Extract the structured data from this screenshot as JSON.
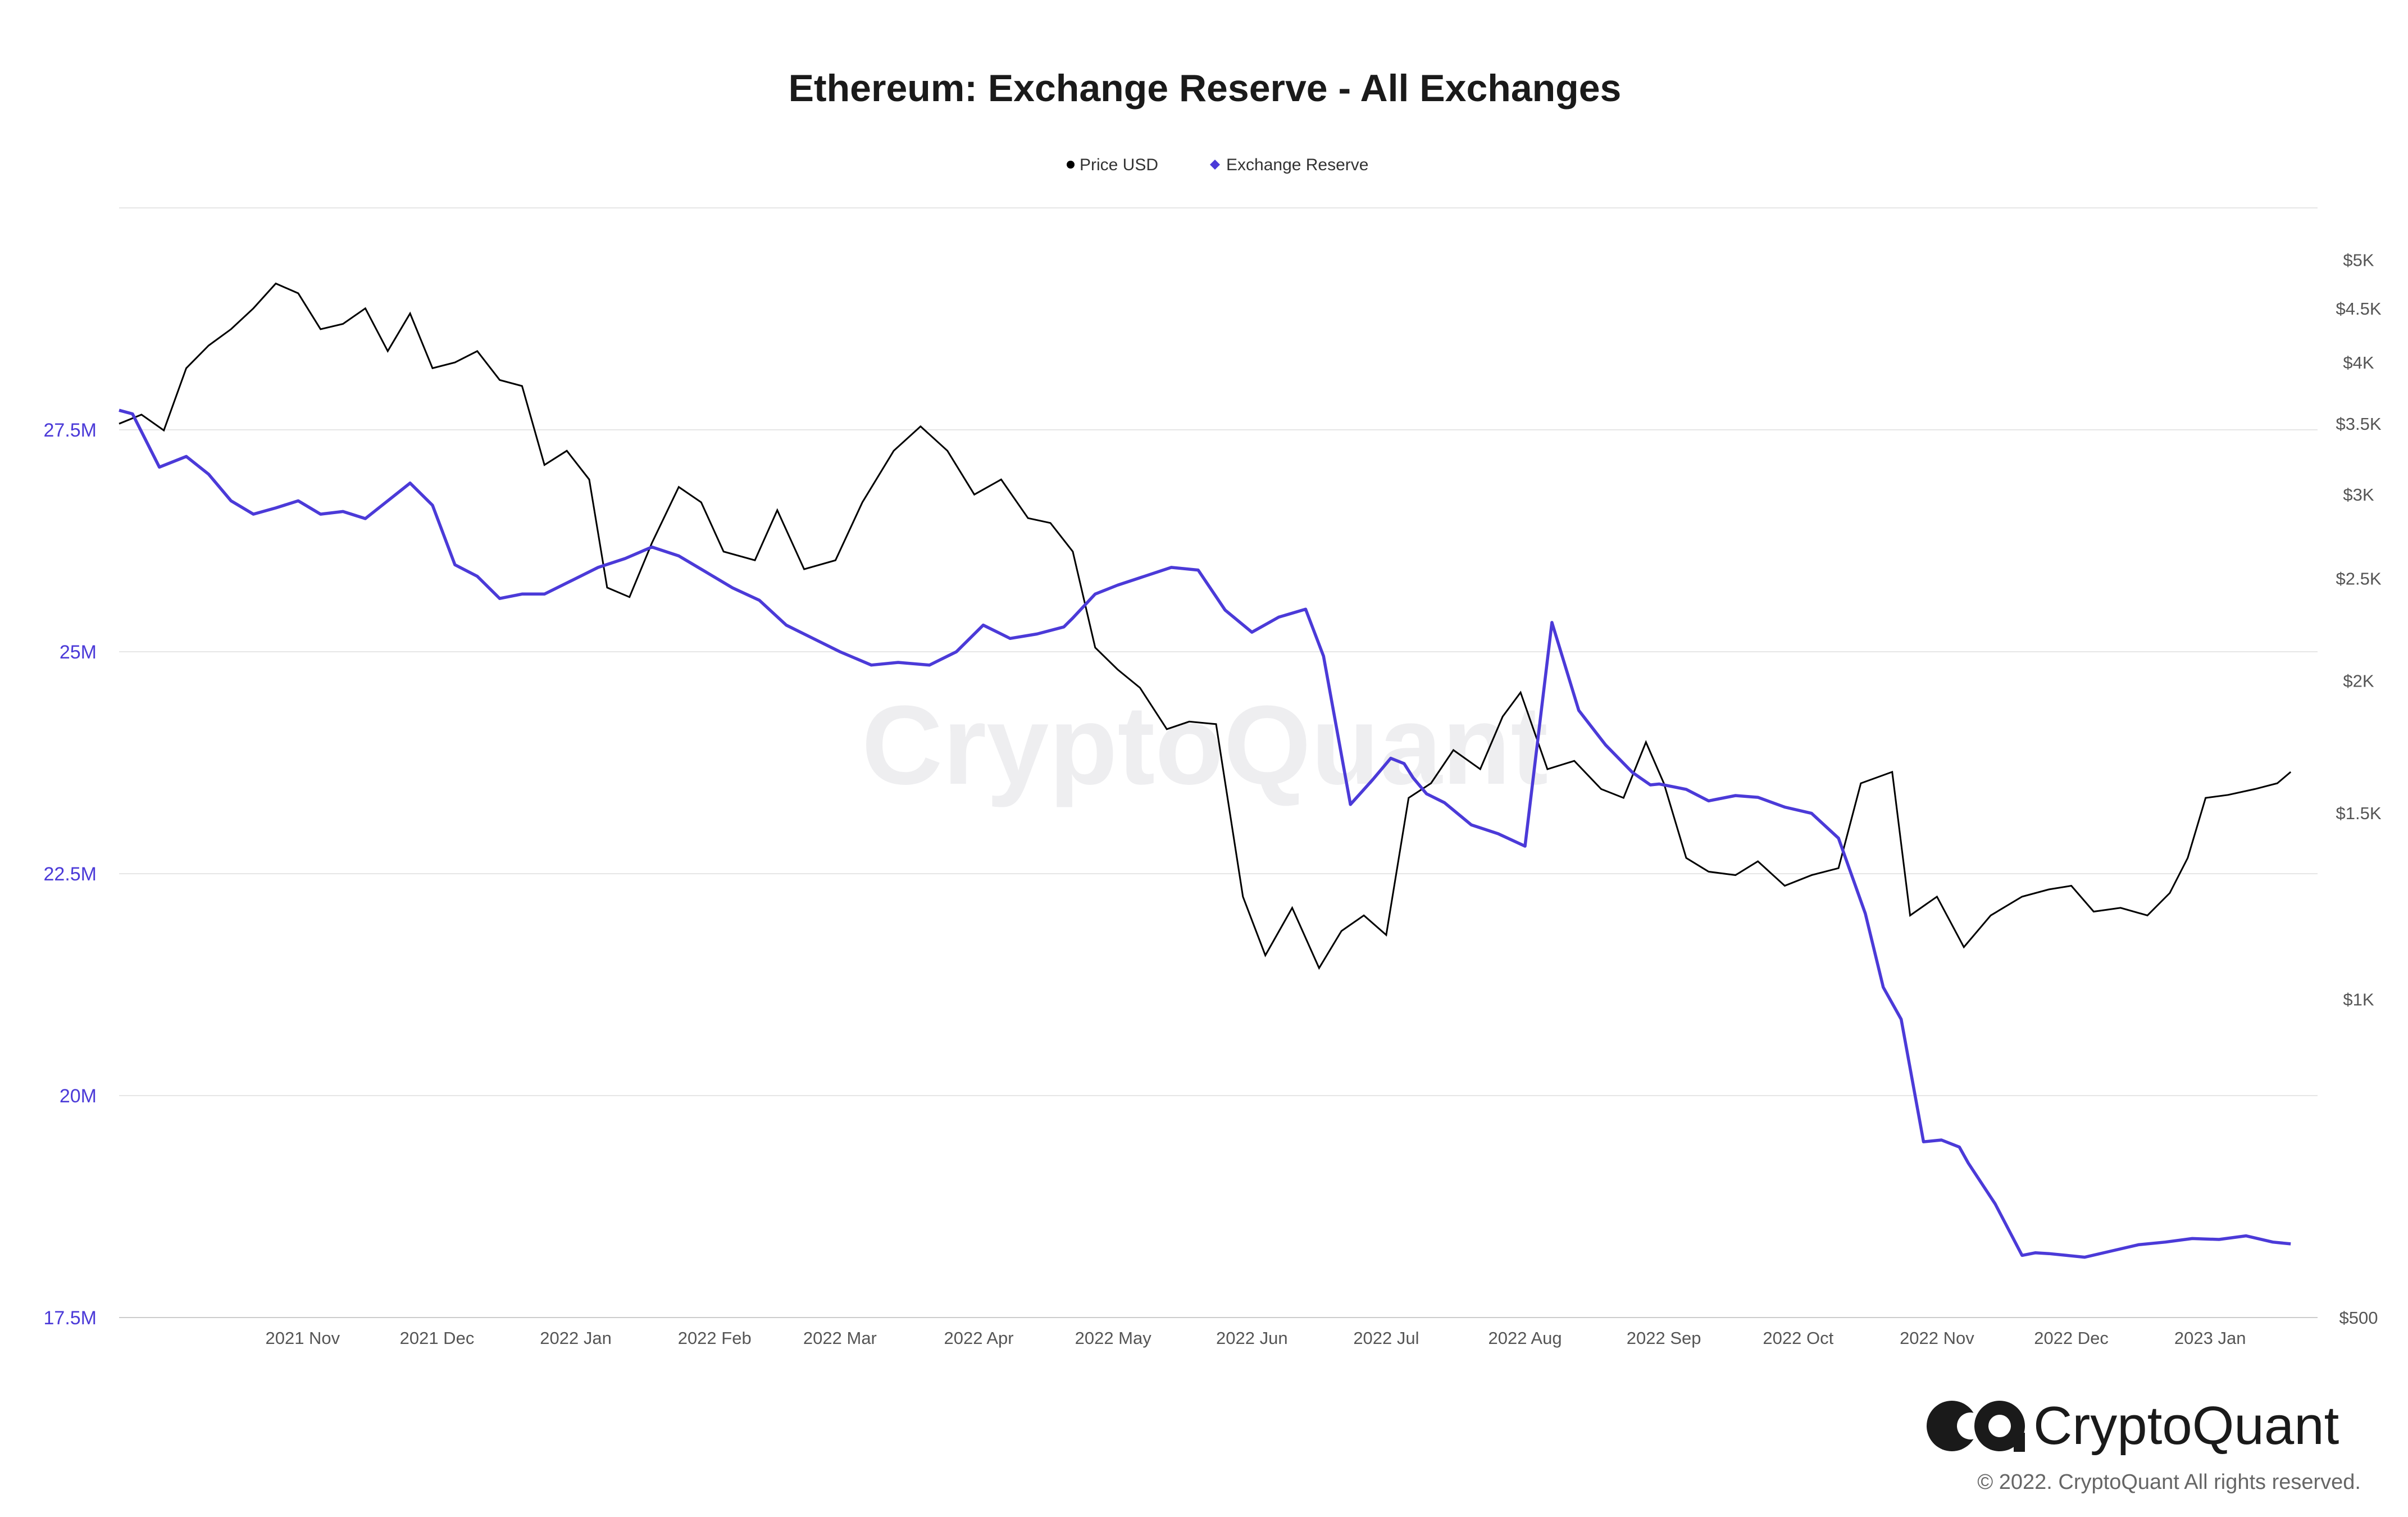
{
  "chart_data": {
    "type": "line",
    "title": "Ethereum: Exchange Reserve - All Exchanges",
    "legend": [
      {
        "name": "Price USD",
        "color": "#000000",
        "marker": "circle"
      },
      {
        "name": "Exchange Reserve",
        "color": "#4b3ad8",
        "marker": "diamond"
      }
    ],
    "legend_placement": "top-center",
    "grid": true,
    "x_ticks": [
      "2021 Nov",
      "2021 Dec",
      "2022 Jan",
      "2022 Feb",
      "2022 Mar",
      "2022 Apr",
      "2022 May",
      "2022 Jun",
      "2022 Jul",
      "2022 Aug",
      "2022 Sep",
      "2022 Oct",
      "2022 Nov",
      "2022 Dec",
      "2023 Jan"
    ],
    "x_tick_dates": [
      "2021-11-01",
      "2021-12-01",
      "2022-01-01",
      "2022-02-01",
      "2022-03-01",
      "2022-04-01",
      "2022-05-01",
      "2022-06-01",
      "2022-07-01",
      "2022-08-01",
      "2022-09-01",
      "2022-10-01",
      "2022-11-01",
      "2022-12-01",
      "2023-01-01"
    ],
    "xlim": [
      "2021-10-05",
      "2023-02-08"
    ],
    "y_left": {
      "color": "#4b3ad8",
      "ticks": [
        17500000,
        20000000,
        22500000,
        25000000,
        27500000
      ],
      "tick_labels": [
        "17.5M",
        "20M",
        "22.5M",
        "25M",
        "27.5M"
      ],
      "ylim": [
        17500000,
        30000000
      ]
    },
    "y_right": {
      "scale": "log",
      "ticks": [
        500,
        1000,
        1500,
        2000,
        2500,
        3000,
        3500,
        4000,
        4500,
        5000
      ],
      "tick_labels": [
        "$500",
        "$1K",
        "$1.5K",
        "$2K",
        "$2.5K",
        "$3K",
        "$3.5K",
        "$4K",
        "$4.5K",
        "$5K"
      ],
      "ylim": [
        500,
        5600
      ]
    },
    "series": [
      {
        "name": "Price USD",
        "axis": "right",
        "color": "#000000",
        "x": [
          "2021-10-05",
          "2021-10-10",
          "2021-10-15",
          "2021-10-20",
          "2021-10-25",
          "2021-10-30",
          "2021-11-04",
          "2021-11-09",
          "2021-11-14",
          "2021-11-19",
          "2021-11-24",
          "2021-11-29",
          "2021-12-04",
          "2021-12-09",
          "2021-12-14",
          "2021-12-19",
          "2021-12-24",
          "2021-12-29",
          "2022-01-03",
          "2022-01-08",
          "2022-01-13",
          "2022-01-18",
          "2022-01-22",
          "2022-01-27",
          "2022-02-01",
          "2022-02-07",
          "2022-02-12",
          "2022-02-17",
          "2022-02-24",
          "2022-03-01",
          "2022-03-07",
          "2022-03-14",
          "2022-03-20",
          "2022-03-27",
          "2022-04-02",
          "2022-04-08",
          "2022-04-14",
          "2022-04-20",
          "2022-04-26",
          "2022-05-01",
          "2022-05-06",
          "2022-05-11",
          "2022-05-16",
          "2022-05-21",
          "2022-05-27",
          "2022-06-01",
          "2022-06-07",
          "2022-06-13",
          "2022-06-18",
          "2022-06-24",
          "2022-06-30",
          "2022-07-05",
          "2022-07-10",
          "2022-07-15",
          "2022-07-20",
          "2022-07-25",
          "2022-07-30",
          "2022-08-05",
          "2022-08-10",
          "2022-08-14",
          "2022-08-20",
          "2022-08-26",
          "2022-09-01",
          "2022-09-06",
          "2022-09-11",
          "2022-09-15",
          "2022-09-20",
          "2022-09-25",
          "2022-10-01",
          "2022-10-06",
          "2022-10-12",
          "2022-10-18",
          "2022-10-24",
          "2022-10-29",
          "2022-11-05",
          "2022-11-09",
          "2022-11-15",
          "2022-11-21",
          "2022-11-27",
          "2022-12-04",
          "2022-12-10",
          "2022-12-15",
          "2022-12-20",
          "2022-12-26",
          "2023-01-01",
          "2023-01-06",
          "2023-01-10",
          "2023-01-14",
          "2023-01-19",
          "2023-01-25",
          "2023-01-30",
          "2023-02-02"
        ],
        "values": [
          3500,
          3570,
          3450,
          3950,
          4150,
          4300,
          4500,
          4750,
          4650,
          4300,
          4350,
          4500,
          4100,
          4450,
          3950,
          4000,
          4100,
          3850,
          3800,
          3200,
          3300,
          3100,
          2450,
          2400,
          2700,
          3050,
          2950,
          2650,
          2600,
          2900,
          2550,
          2600,
          2950,
          3300,
          3480,
          3300,
          3000,
          3100,
          2850,
          2820,
          2650,
          2150,
          2050,
          1970,
          1800,
          1830,
          1820,
          1250,
          1100,
          1220,
          1070,
          1160,
          1200,
          1150,
          1550,
          1600,
          1720,
          1650,
          1850,
          1950,
          1650,
          1680,
          1580,
          1550,
          1750,
          1600,
          1360,
          1320,
          1310,
          1350,
          1280,
          1310,
          1330,
          1600,
          1640,
          1200,
          1250,
          1120,
          1200,
          1250,
          1270,
          1280,
          1210,
          1220,
          1200,
          1260,
          1360,
          1550,
          1560,
          1580,
          1600,
          1640
        ]
      },
      {
        "name": "Exchange Reserve",
        "axis": "left",
        "color": "#4b3ad8",
        "x": [
          "2021-10-05",
          "2021-10-08",
          "2021-10-14",
          "2021-10-20",
          "2021-10-25",
          "2021-10-30",
          "2021-11-04",
          "2021-11-09",
          "2021-11-14",
          "2021-11-19",
          "2021-11-24",
          "2021-11-29",
          "2021-12-04",
          "2021-12-09",
          "2021-12-14",
          "2021-12-19",
          "2021-12-24",
          "2021-12-29",
          "2022-01-03",
          "2022-01-08",
          "2022-01-14",
          "2022-01-20",
          "2022-01-26",
          "2022-02-01",
          "2022-02-07",
          "2022-02-13",
          "2022-02-19",
          "2022-02-25",
          "2022-03-03",
          "2022-03-09",
          "2022-03-15",
          "2022-03-22",
          "2022-03-28",
          "2022-04-04",
          "2022-04-10",
          "2022-04-16",
          "2022-04-22",
          "2022-04-28",
          "2022-05-04",
          "2022-05-06",
          "2022-05-11",
          "2022-05-16",
          "2022-05-22",
          "2022-05-28",
          "2022-06-03",
          "2022-06-09",
          "2022-06-15",
          "2022-06-21",
          "2022-06-27",
          "2022-07-01",
          "2022-07-07",
          "2022-07-12",
          "2022-07-16",
          "2022-07-19",
          "2022-07-21",
          "2022-07-24",
          "2022-07-28",
          "2022-08-03",
          "2022-08-09",
          "2022-08-15",
          "2022-08-21",
          "2022-08-27",
          "2022-09-02",
          "2022-09-08",
          "2022-09-12",
          "2022-09-14",
          "2022-09-20",
          "2022-09-25",
          "2022-10-01",
          "2022-10-06",
          "2022-10-12",
          "2022-10-18",
          "2022-10-24",
          "2022-10-30",
          "2022-11-03",
          "2022-11-07",
          "2022-11-12",
          "2022-11-16",
          "2022-11-20",
          "2022-11-22",
          "2022-11-28",
          "2022-12-04",
          "2022-12-07",
          "2022-12-10",
          "2022-12-14",
          "2022-12-18",
          "2022-12-24",
          "2022-12-30",
          "2023-01-05",
          "2023-01-11",
          "2023-01-17",
          "2023-01-23",
          "2023-01-29",
          "2023-02-02"
        ],
        "values": [
          27720000,
          27680000,
          27080000,
          27200000,
          27000000,
          26700000,
          26550000,
          26620000,
          26700000,
          26550000,
          26580000,
          26500000,
          26700000,
          26900000,
          26650000,
          25980000,
          25850000,
          25600000,
          25650000,
          25650000,
          25800000,
          25950000,
          26050000,
          26180000,
          26080000,
          25900000,
          25720000,
          25580000,
          25300000,
          25150000,
          25000000,
          24850000,
          24880000,
          24850000,
          25000000,
          25300000,
          25150000,
          25200000,
          25280000,
          25380000,
          25650000,
          25750000,
          25850000,
          25950000,
          25920000,
          25470000,
          25220000,
          25390000,
          25480000,
          24950000,
          23280000,
          23560000,
          23800000,
          23740000,
          23580000,
          23400000,
          23300000,
          23050000,
          22950000,
          22810000,
          25330000,
          24340000,
          23950000,
          23640000,
          23500000,
          23510000,
          23450000,
          23320000,
          23380000,
          23360000,
          23250000,
          23180000,
          22900000,
          22050000,
          21220000,
          20860000,
          19480000,
          19500000,
          19420000,
          19240000,
          18780000,
          18200000,
          18230000,
          18220000,
          18200000,
          18180000,
          18250000,
          18320000,
          18350000,
          18390000,
          18380000,
          18420000,
          18350000,
          18330000
        ]
      }
    ]
  },
  "watermark": "CryptoQuant",
  "logo": {
    "text": "CryptoQuant"
  },
  "copyright": "© 2022. CryptoQuant All rights reserved."
}
